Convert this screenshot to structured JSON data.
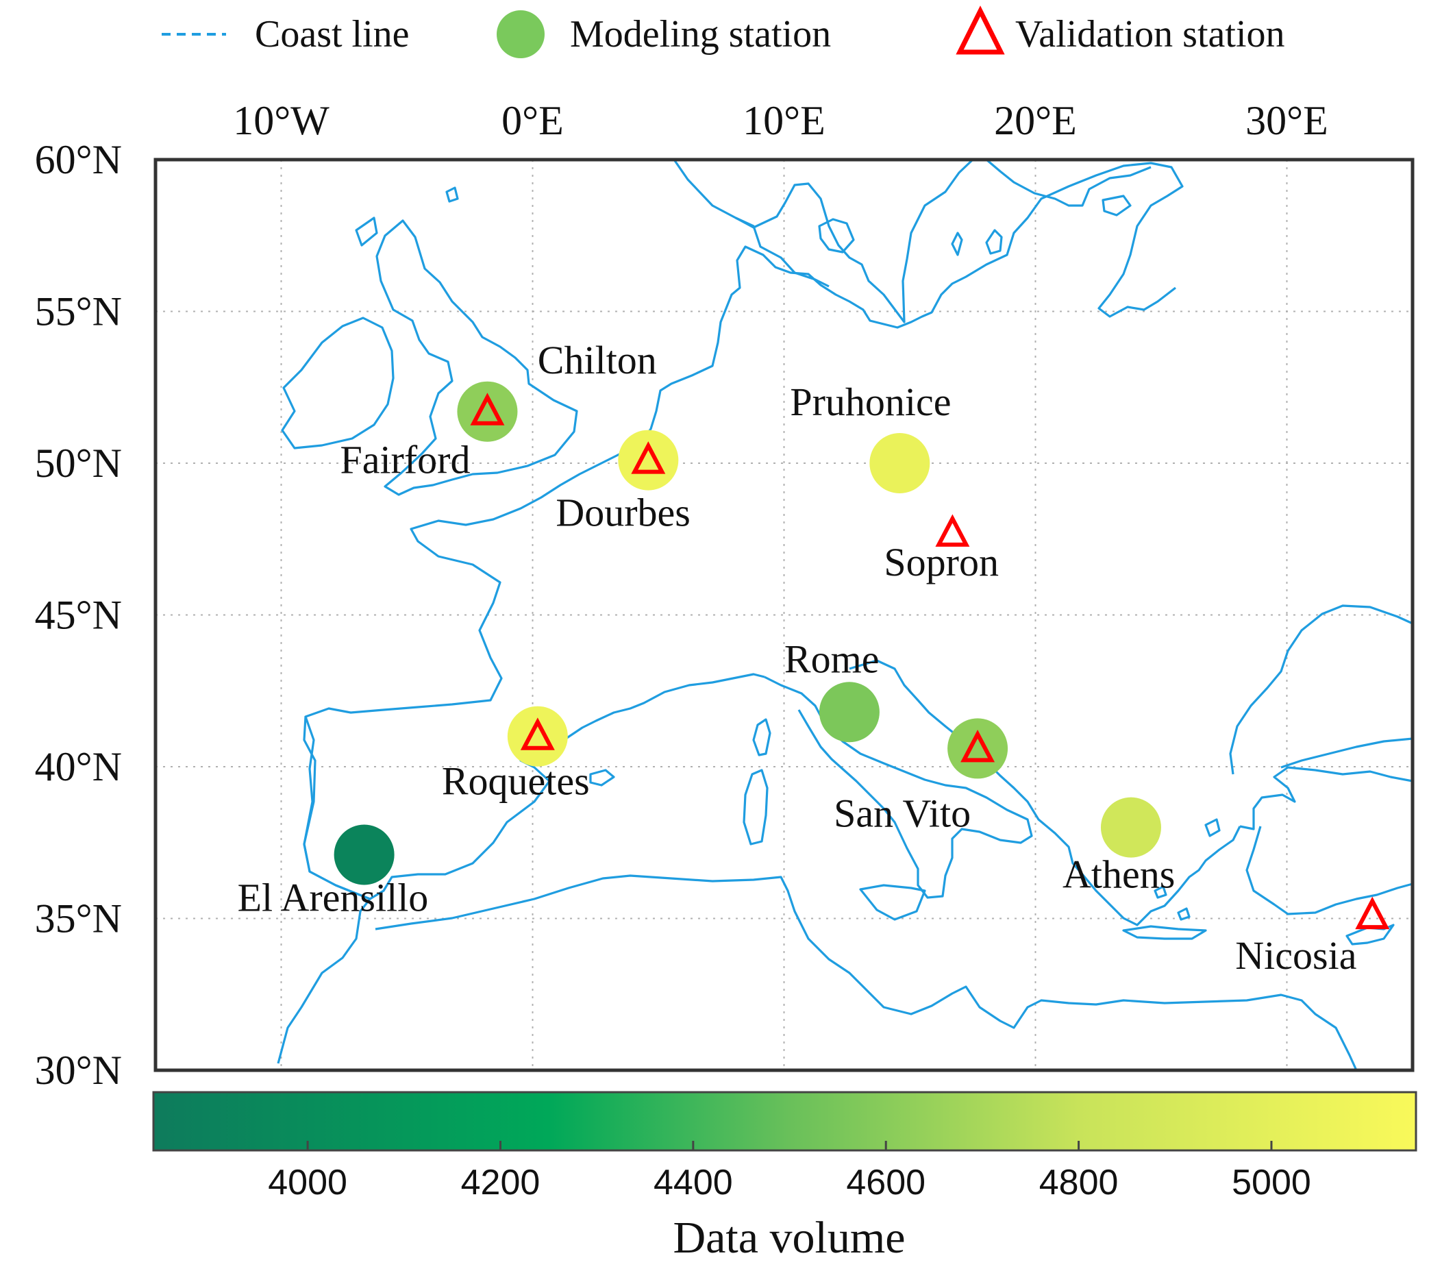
{
  "legend": {
    "coast": "Coast line",
    "modeling": "Modeling station",
    "validation": "Validation station"
  },
  "map": {
    "lon_range": [
      -15,
      35
    ],
    "lat_range": [
      30,
      60
    ],
    "lon_ticks": [
      {
        "value": -10,
        "label": "10°W"
      },
      {
        "value": 0,
        "label": "0°E"
      },
      {
        "value": 10,
        "label": "10°E"
      },
      {
        "value": 20,
        "label": "20°E"
      },
      {
        "value": 30,
        "label": "30°E"
      }
    ],
    "lat_ticks": [
      {
        "value": 60,
        "label": "60°N"
      },
      {
        "value": 55,
        "label": "55°N"
      },
      {
        "value": 50,
        "label": "50°N"
      },
      {
        "value": 45,
        "label": "45°N"
      },
      {
        "value": 40,
        "label": "40°N"
      },
      {
        "value": 35,
        "label": "35°N"
      },
      {
        "value": 30,
        "label": "30°N"
      }
    ],
    "grid": true,
    "colors": {
      "coast": "#1f9de0",
      "validation": "#ff0000",
      "grid": "#b0b0b0",
      "frame": "#333333"
    }
  },
  "stations": [
    {
      "name": "Fairford",
      "lon": -1.8,
      "lat": 51.7,
      "modeling": true,
      "volume": 4620,
      "validation": true
    },
    {
      "name": "Chilton",
      "lon": -1.3,
      "lat": 51.6,
      "modeling": false,
      "validation": false
    },
    {
      "name": "Dourbes",
      "lon": 4.6,
      "lat": 50.1,
      "modeling": true,
      "volume": 5070,
      "validation": true
    },
    {
      "name": "Pruhonice",
      "lon": 14.6,
      "lat": 50.0,
      "modeling": true,
      "volume": 5040,
      "validation": false
    },
    {
      "name": "Sopron",
      "lon": 16.7,
      "lat": 47.7,
      "modeling": false,
      "validation": true
    },
    {
      "name": "Rome",
      "lon": 12.6,
      "lat": 41.8,
      "modeling": true,
      "volume": 4560,
      "validation": false
    },
    {
      "name": "Roquetes",
      "lon": 0.2,
      "lat": 41.0,
      "modeling": true,
      "volume": 5070,
      "validation": true
    },
    {
      "name": "San Vito",
      "lon": 17.7,
      "lat": 40.6,
      "modeling": true,
      "volume": 4620,
      "validation": true
    },
    {
      "name": "Athens",
      "lon": 23.8,
      "lat": 38.0,
      "modeling": true,
      "volume": 4860,
      "validation": false
    },
    {
      "name": "El Arensillo",
      "lon": -6.7,
      "lat": 37.1,
      "modeling": true,
      "volume": 3920,
      "validation": false
    },
    {
      "name": "Nicosia",
      "lon": 33.4,
      "lat": 35.1,
      "modeling": false,
      "validation": true
    }
  ],
  "colorbar": {
    "label": "Data volume",
    "range": [
      3840,
      5150
    ],
    "ticks": [
      4000,
      4200,
      4400,
      4600,
      4800,
      5000
    ],
    "stops": [
      {
        "value": 3840,
        "color": "#0e7b5c"
      },
      {
        "value": 4250,
        "color": "#00a859"
      },
      {
        "value": 4500,
        "color": "#69c05a"
      },
      {
        "value": 4800,
        "color": "#c8e35a"
      },
      {
        "value": 5150,
        "color": "#f9f95a"
      }
    ]
  }
}
